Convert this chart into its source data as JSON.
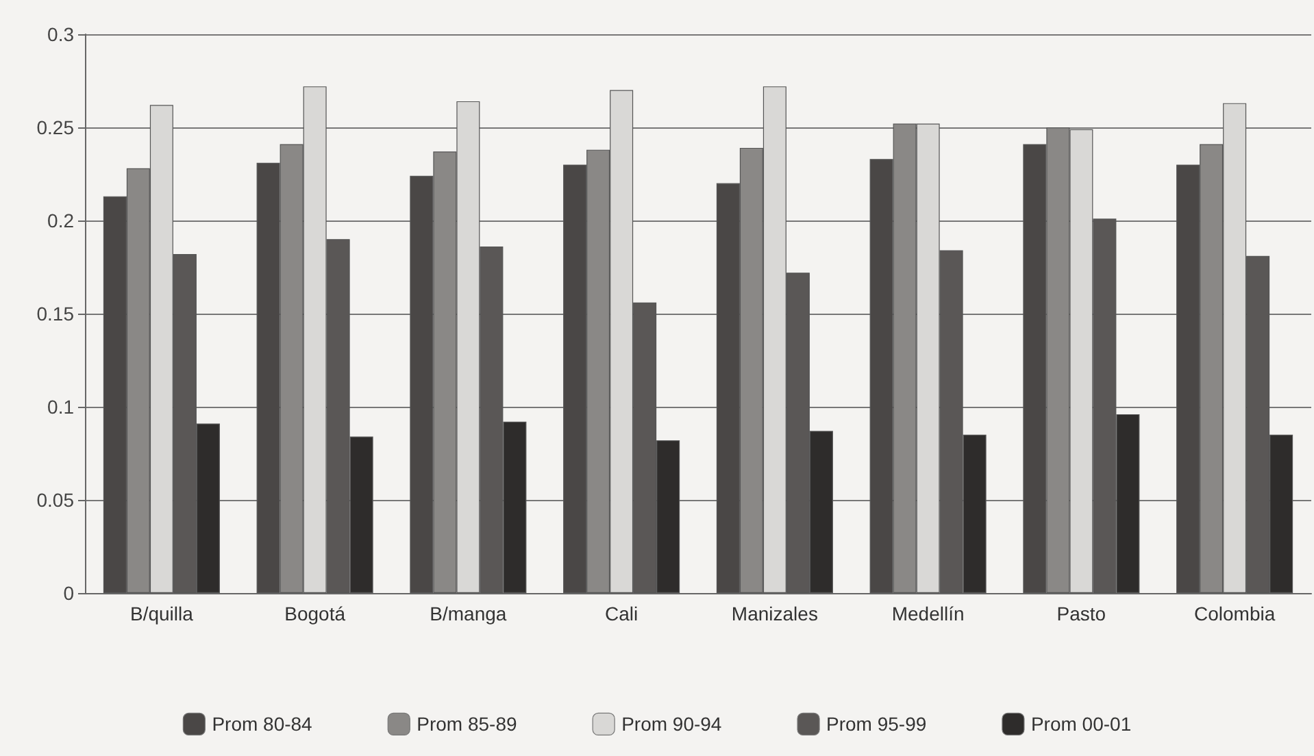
{
  "chart_data": {
    "type": "bar",
    "categories": [
      "B/quilla",
      "Bogotá",
      "B/manga",
      "Cali",
      "Manizales",
      "Medellín",
      "Pasto",
      "Colombia"
    ],
    "series": [
      {
        "name": "Prom 80-84",
        "color": "#4a4746",
        "values": [
          0.213,
          0.231,
          0.224,
          0.23,
          0.22,
          0.233,
          0.241,
          0.23
        ]
      },
      {
        "name": "Prom 85-89",
        "color": "#8a8886",
        "values": [
          0.228,
          0.241,
          0.237,
          0.238,
          0.239,
          0.252,
          0.25,
          0.241
        ]
      },
      {
        "name": "Prom 90-94",
        "color": "#d9d8d6",
        "values": [
          0.262,
          0.272,
          0.264,
          0.27,
          0.272,
          0.252,
          0.249,
          0.263
        ]
      },
      {
        "name": "Prom 95-99",
        "color": "#5a5756",
        "values": [
          0.182,
          0.19,
          0.186,
          0.156,
          0.172,
          0.184,
          0.201,
          0.181
        ]
      },
      {
        "name": "Prom 00-01",
        "color": "#2e2c2b",
        "values": [
          0.091,
          0.084,
          0.092,
          0.082,
          0.087,
          0.085,
          0.096,
          0.085
        ]
      }
    ],
    "ylim": [
      0,
      0.3
    ],
    "yticks": [
      0,
      0.05,
      0.1,
      0.15,
      0.2,
      0.25,
      0.3
    ],
    "grid": "y",
    "legend": "bottom"
  }
}
